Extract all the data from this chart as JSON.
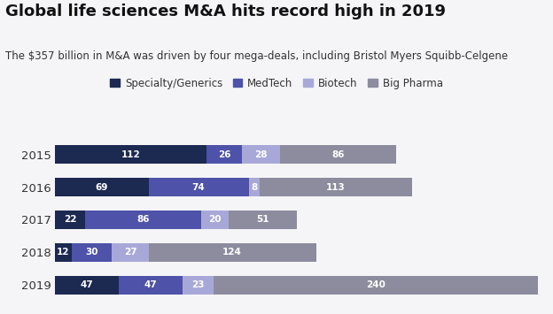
{
  "title": "Global life sciences M&A hits record high in 2019",
  "subtitle": "The $357 billion in M&A was driven by four mega-deals, including Bristol Myers Squibb-Celgene",
  "years": [
    "2015",
    "2016",
    "2017",
    "2018",
    "2019"
  ],
  "categories": [
    "Specialty/Generics",
    "MedTech",
    "Biotech",
    "Big Pharma"
  ],
  "colors": [
    "#1c2951",
    "#4e52a8",
    "#a8a8d8",
    "#8c8c9e"
  ],
  "data": {
    "2015": [
      112,
      26,
      28,
      86
    ],
    "2016": [
      69,
      74,
      8,
      113
    ],
    "2017": [
      22,
      86,
      20,
      51
    ],
    "2018": [
      12,
      30,
      27,
      124
    ],
    "2019": [
      47,
      47,
      23,
      240
    ]
  },
  "background_color": "#f5f5f8",
  "title_fontsize": 13,
  "subtitle_fontsize": 8.5,
  "bar_label_fontsize": 7.5,
  "legend_fontsize": 8.5,
  "xlim": 360
}
